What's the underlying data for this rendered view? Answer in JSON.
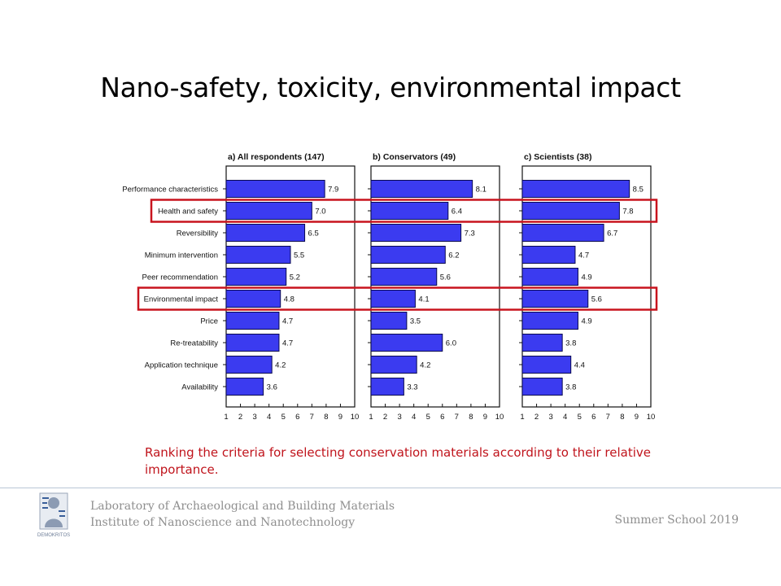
{
  "slide": {
    "title": "Nano-safety, toxicity, environmental impact",
    "caption": "Ranking the criteria for selecting conservation materials according to their relative importance.",
    "footer": {
      "org_line1": "Laboratory of Archaeological and Building Materials",
      "org_line2": "Institute of Nanoscience and Nanotechnology",
      "event": "Summer School 2019",
      "logo_text": "DEMOKRITOS"
    }
  },
  "colors": {
    "bar_fill": "#3b3bf0",
    "bar_stroke": "#0a0a50",
    "highlight": "#c8141e",
    "caption_text": "#c0141c"
  },
  "chart_data": {
    "type": "bar",
    "orientation": "horizontal",
    "categories": [
      "Performance characteristics",
      "Health and safety",
      "Reversibility",
      "Minimum intervention",
      "Peer recommendation",
      "Environmental impact",
      "Price",
      "Re-treatability",
      "Application technique",
      "Availability"
    ],
    "xlim": [
      1,
      10
    ],
    "xticks": [
      1,
      2,
      3,
      4,
      5,
      6,
      7,
      8,
      9,
      10
    ],
    "highlighted_categories": [
      "Health and safety",
      "Environmental impact"
    ],
    "panels": [
      {
        "title": "a)   All respondents (147)",
        "values": [
          7.9,
          7.0,
          6.5,
          5.5,
          5.2,
          4.8,
          4.7,
          4.7,
          4.2,
          3.6
        ]
      },
      {
        "title": "b)   Conservators (49)",
        "values": [
          8.1,
          6.4,
          7.3,
          6.2,
          5.6,
          4.1,
          3.5,
          6.0,
          4.2,
          3.3
        ]
      },
      {
        "title": "c)   Scientists (38)",
        "values": [
          8.5,
          7.8,
          6.7,
          4.7,
          4.9,
          5.6,
          4.9,
          3.8,
          4.4,
          3.8
        ]
      }
    ]
  }
}
